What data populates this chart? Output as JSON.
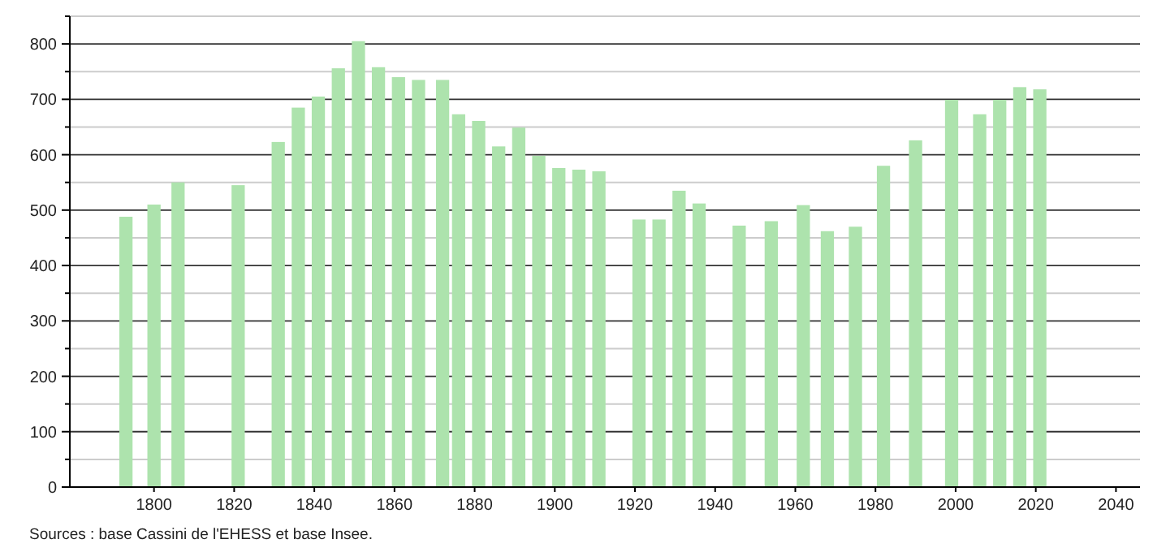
{
  "chart_data": {
    "type": "bar",
    "x": [
      1793,
      1800,
      1806,
      1821,
      1831,
      1836,
      1841,
      1846,
      1851,
      1856,
      1861,
      1866,
      1872,
      1876,
      1881,
      1886,
      1891,
      1896,
      1901,
      1906,
      1911,
      1921,
      1926,
      1931,
      1936,
      1946,
      1954,
      1962,
      1968,
      1975,
      1982,
      1990,
      1999,
      2006,
      2011,
      2016,
      2021
    ],
    "values": [
      488,
      510,
      550,
      545,
      623,
      685,
      705,
      756,
      805,
      758,
      740,
      735,
      735,
      673,
      661,
      615,
      649,
      598,
      576,
      573,
      570,
      483,
      483,
      535,
      512,
      472,
      480,
      509,
      462,
      470,
      580,
      626,
      699,
      673,
      699,
      722,
      718
    ],
    "color": "#ade3ad",
    "xlim": [
      1779,
      2046
    ],
    "xticks": [
      1800,
      1820,
      1840,
      1860,
      1880,
      1900,
      1920,
      1940,
      1960,
      1980,
      2000,
      2020,
      2040
    ],
    "ylim": [
      0,
      850
    ],
    "yticks": [
      0,
      {
        "value": 50,
        "label": null
      },
      100,
      {
        "value": 150,
        "label": null
      },
      200,
      {
        "value": 250,
        "label": null
      },
      300,
      {
        "value": 350,
        "label": null
      },
      400,
      {
        "value": 450,
        "label": null
      },
      500,
      {
        "value": 550,
        "label": null
      },
      600,
      {
        "value": 650,
        "label": null
      },
      700,
      {
        "value": 750,
        "label": null
      },
      800,
      {
        "value": 850,
        "label": null
      }
    ],
    "grid": "y",
    "annotations": [
      "Sources : base Cassini de l'EHESS et base Insee."
    ]
  }
}
